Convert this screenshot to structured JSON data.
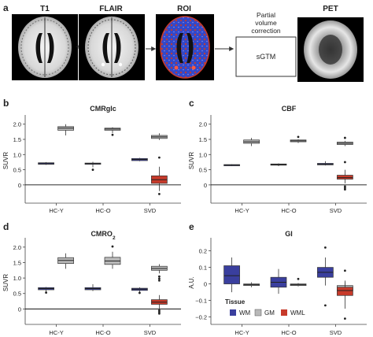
{
  "panel_a": {
    "letter": "a",
    "labels": {
      "t1": "T1",
      "flair": "FLAIR",
      "roi": "ROI",
      "pet": "PET"
    },
    "plus": "+",
    "pvc_caption": [
      "Partial",
      "volume",
      "correction"
    ],
    "sgtm": "sGTM"
  },
  "colors": {
    "wm": "#3a3f9e",
    "gm": "#b8b8b8",
    "wml": "#c73a2a",
    "axis": "#444444"
  },
  "legend": {
    "title": "Tissue",
    "items": [
      {
        "label": "WM",
        "color": "#3a3f9e"
      },
      {
        "label": "GM",
        "color": "#b8b8b8"
      },
      {
        "label": "WML",
        "color": "#c73a2a"
      }
    ]
  },
  "chart_data": [
    {
      "panel": "b",
      "type": "box",
      "title": "CMRglc",
      "ylabel": "SUVR",
      "categories": [
        "HC-Y",
        "HC-O",
        "SVD"
      ],
      "ylim": [
        -0.6,
        2.2
      ],
      "yticks": [
        "2.0",
        "1.5",
        "1.0",
        "0.5",
        "0"
      ],
      "ytick_values": [
        2.0,
        1.5,
        1.0,
        0.5,
        0.0
      ],
      "zero_line": true,
      "boxes": [
        {
          "group": "HC-Y",
          "tissue": "WM",
          "q1": 0.68,
          "med": 0.7,
          "q3": 0.73,
          "lo": 0.66,
          "hi": 0.75,
          "out": []
        },
        {
          "group": "HC-Y",
          "tissue": "GM",
          "q1": 1.8,
          "med": 1.87,
          "q3": 1.92,
          "lo": 1.63,
          "hi": 2.0,
          "out": []
        },
        {
          "group": "HC-O",
          "tissue": "WM",
          "q1": 0.68,
          "med": 0.7,
          "q3": 0.72,
          "lo": 0.58,
          "hi": 0.76,
          "out": [
            0.5
          ]
        },
        {
          "group": "HC-O",
          "tissue": "GM",
          "q1": 1.8,
          "med": 1.84,
          "q3": 1.87,
          "lo": 1.7,
          "hi": 1.9,
          "out": [
            1.65
          ]
        },
        {
          "group": "SVD",
          "tissue": "WM",
          "q1": 0.8,
          "med": 0.84,
          "q3": 0.87,
          "lo": 0.78,
          "hi": 0.89,
          "out": []
        },
        {
          "group": "SVD",
          "tissue": "GM",
          "q1": 1.53,
          "med": 1.58,
          "q3": 1.63,
          "lo": 1.48,
          "hi": 1.7,
          "out": []
        },
        {
          "group": "SVD",
          "tissue": "WML",
          "q1": 0.05,
          "med": 0.17,
          "q3": 0.3,
          "lo": -0.2,
          "hi": 0.6,
          "out": [
            0.9,
            -0.3
          ]
        }
      ]
    },
    {
      "panel": "c",
      "type": "box",
      "title": "CBF",
      "ylabel": "SUVR",
      "categories": [
        "HC-Y",
        "HC-O",
        "SVD"
      ],
      "ylim": [
        -0.6,
        2.2
      ],
      "yticks": [
        "2.0",
        "1.5",
        "1.0",
        "0.5",
        "0"
      ],
      "ytick_values": [
        2.0,
        1.5,
        1.0,
        0.5,
        0.0
      ],
      "zero_line": true,
      "boxes": [
        {
          "group": "HC-Y",
          "tissue": "WM",
          "q1": 0.63,
          "med": 0.65,
          "q3": 0.67,
          "lo": 0.62,
          "hi": 0.68,
          "out": []
        },
        {
          "group": "HC-Y",
          "tissue": "GM",
          "q1": 1.37,
          "med": 1.42,
          "q3": 1.48,
          "lo": 1.28,
          "hi": 1.55,
          "out": []
        },
        {
          "group": "HC-O",
          "tissue": "WM",
          "q1": 0.65,
          "med": 0.67,
          "q3": 0.69,
          "lo": 0.62,
          "hi": 0.71,
          "out": []
        },
        {
          "group": "HC-O",
          "tissue": "GM",
          "q1": 1.42,
          "med": 1.45,
          "q3": 1.48,
          "lo": 1.38,
          "hi": 1.5,
          "out": [
            1.58
          ]
        },
        {
          "group": "SVD",
          "tissue": "WM",
          "q1": 0.66,
          "med": 0.68,
          "q3": 0.71,
          "lo": 0.64,
          "hi": 0.78,
          "out": []
        },
        {
          "group": "SVD",
          "tissue": "GM",
          "q1": 1.33,
          "med": 1.37,
          "q3": 1.41,
          "lo": 1.28,
          "hi": 1.45,
          "out": [
            1.55
          ]
        },
        {
          "group": "SVD",
          "tissue": "WML",
          "q1": 0.19,
          "med": 0.24,
          "q3": 0.32,
          "lo": 0.05,
          "hi": 0.5,
          "out": [
            0.75,
            -0.05,
            -0.1,
            -0.15
          ]
        }
      ]
    },
    {
      "panel": "d",
      "type": "box",
      "title": "CMRO",
      "title_sub": "2",
      "ylabel": "SUVR",
      "categories": [
        "HC-Y",
        "HC-O",
        "SVD"
      ],
      "ylim": [
        -0.5,
        2.2
      ],
      "yticks": [
        "2.0",
        "1.5",
        "1.0",
        "0.5",
        "0"
      ],
      "ytick_values": [
        2.0,
        1.5,
        1.0,
        0.5,
        0.0
      ],
      "zero_line": true,
      "boxes": [
        {
          "group": "HC-Y",
          "tissue": "WM",
          "q1": 0.62,
          "med": 0.66,
          "q3": 0.69,
          "lo": 0.57,
          "hi": 0.71,
          "out": [
            0.53
          ]
        },
        {
          "group": "HC-Y",
          "tissue": "GM",
          "q1": 1.47,
          "med": 1.57,
          "q3": 1.66,
          "lo": 1.3,
          "hi": 1.8,
          "out": []
        },
        {
          "group": "HC-O",
          "tissue": "WM",
          "q1": 0.62,
          "med": 0.66,
          "q3": 0.69,
          "lo": 0.58,
          "hi": 0.8,
          "out": []
        },
        {
          "group": "HC-O",
          "tissue": "GM",
          "q1": 1.44,
          "med": 1.55,
          "q3": 1.67,
          "lo": 1.3,
          "hi": 1.85,
          "out": [
            2.02
          ]
        },
        {
          "group": "SVD",
          "tissue": "WM",
          "q1": 0.6,
          "med": 0.64,
          "q3": 0.67,
          "lo": 0.55,
          "hi": 0.7,
          "out": [
            0.52
          ]
        },
        {
          "group": "SVD",
          "tissue": "GM",
          "q1": 1.25,
          "med": 1.31,
          "q3": 1.38,
          "lo": 1.15,
          "hi": 1.45,
          "out": [
            1.05,
            0.98,
            0.92
          ]
        },
        {
          "group": "SVD",
          "tissue": "WML",
          "q1": 0.15,
          "med": 0.22,
          "q3": 0.3,
          "lo": 0.0,
          "hi": 0.45,
          "out": [
            -0.05,
            -0.1,
            -0.15
          ]
        }
      ]
    },
    {
      "panel": "e",
      "type": "box",
      "title": "GI",
      "ylabel": "A.U.",
      "categories": [
        "HC-Y",
        "HC-O",
        "SVD"
      ],
      "ylim": [
        -0.245,
        0.26
      ],
      "yticks": [
        "0.2",
        "0.1",
        "0",
        "−0.1",
        "−0.2"
      ],
      "ytick_values": [
        0.2,
        0.1,
        0.0,
        -0.1,
        -0.2
      ],
      "zero_line": false,
      "boxes": [
        {
          "group": "HC-Y",
          "tissue": "WM",
          "q1": 0.0,
          "med": 0.05,
          "q3": 0.11,
          "lo": -0.05,
          "hi": 0.16,
          "out": []
        },
        {
          "group": "HC-Y",
          "tissue": "GM",
          "q1": -0.01,
          "med": -0.005,
          "q3": 0.0,
          "lo": -0.02,
          "hi": 0.01,
          "out": []
        },
        {
          "group": "HC-O",
          "tissue": "WM",
          "q1": -0.02,
          "med": 0.01,
          "q3": 0.04,
          "lo": -0.06,
          "hi": 0.09,
          "out": []
        },
        {
          "group": "HC-O",
          "tissue": "GM",
          "q1": -0.01,
          "med": -0.005,
          "q3": 0.0,
          "lo": -0.015,
          "hi": 0.005,
          "out": [
            0.03
          ]
        },
        {
          "group": "SVD",
          "tissue": "WM",
          "q1": 0.04,
          "med": 0.07,
          "q3": 0.1,
          "lo": -0.01,
          "hi": 0.16,
          "out": [
            0.22,
            -0.13
          ]
        },
        {
          "group": "SVD",
          "tissue": "GM",
          "q1": -0.04,
          "med": -0.025,
          "q3": -0.01,
          "lo": -0.07,
          "hi": 0.01,
          "out": []
        },
        {
          "group": "SVD",
          "tissue": "WML",
          "q1": -0.07,
          "med": -0.04,
          "q3": -0.02,
          "lo": -0.15,
          "hi": 0.02,
          "out": [
            0.08,
            -0.21
          ]
        }
      ]
    }
  ]
}
